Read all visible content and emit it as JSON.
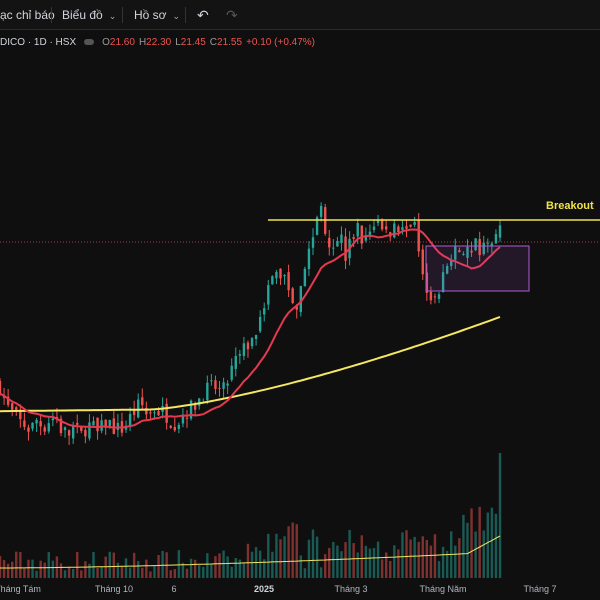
{
  "toolbar": {
    "indicators_label": "ạc chỉ báo",
    "chart_label": "Biểu đồ",
    "profile_label": "Hồ sơ",
    "undo_icon": "undo-icon",
    "redo_icon": "redo-icon"
  },
  "legend": {
    "symbol": "DICO · 1D · HSX",
    "open_key": "O",
    "open": "21.60",
    "high_key": "H",
    "high": "22.30",
    "low_key": "L",
    "low": "21.45",
    "close_key": "C",
    "close": "21.55",
    "change": "+0.10 (+0.47%)"
  },
  "annotation": {
    "breakout_label": "Breakout"
  },
  "time_axis": {
    "ticks": [
      {
        "label": "Tháng Tám",
        "bold": false
      },
      {
        "label": "Tháng 10",
        "bold": false
      },
      {
        "label": "6",
        "bold": false
      },
      {
        "label": "2025",
        "bold": true
      },
      {
        "label": "Tháng 3",
        "bold": false
      },
      {
        "label": "Tháng Năm",
        "bold": false
      },
      {
        "label": "Tháng 7",
        "bold": false
      }
    ]
  },
  "colors": {
    "up": "#26a69a",
    "down": "#ef5350",
    "ma_short": "#e53950",
    "ma_long": "#f5e663",
    "breakout_line": "#f0e34a",
    "box": "#b05cd6",
    "volume_ma": "#f5e663"
  },
  "chart_data": {
    "type": "candlestick",
    "symbol": "DICO",
    "interval": "1D",
    "exchange": "HSX",
    "resistance_level_label": "Breakout",
    "price_trend": [
      16.2,
      15.4,
      15.1,
      14.8,
      14.7,
      14.5,
      14.9,
      14.6,
      14.9,
      15.0,
      14.5,
      14.3,
      14.6,
      14.2,
      14.7,
      14.6,
      14.3,
      14.8,
      14.7,
      14.5,
      14.6,
      14.9,
      15.3,
      15.4,
      15.0,
      15.3,
      15.2,
      15.1,
      14.8,
      14.9,
      15.2,
      15.3,
      15.6,
      15.9,
      16.0,
      16.1,
      15.8,
      16.4,
      17.0,
      17.2,
      17.7,
      17.8,
      18.8,
      19.5,
      20.0,
      20.4,
      20.2,
      19.6,
      19.2,
      20.3,
      21.1,
      22.0,
      22.9,
      21.7,
      21.4,
      21.9,
      20.9,
      21.6,
      22.1,
      21.3,
      22.0,
      22.4,
      21.8,
      21.9,
      22.1,
      21.9,
      22.3,
      22.1,
      21.2,
      20.0,
      19.4,
      19.3,
      20.6,
      20.7,
      21.1,
      20.9,
      21.2,
      21.5,
      21.0,
      21.3,
      21.9,
      22.3
    ]
  }
}
